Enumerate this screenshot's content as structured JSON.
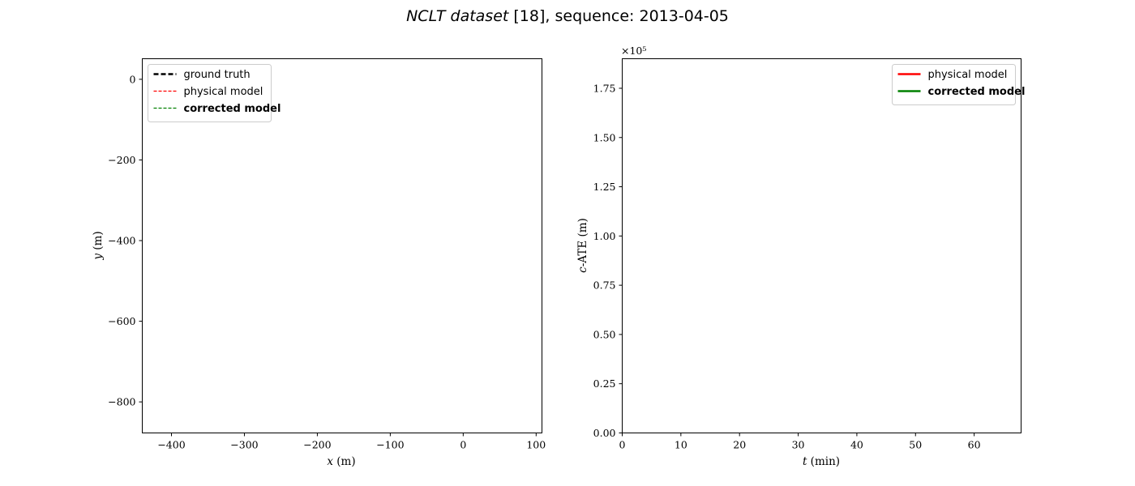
{
  "figure": {
    "title_italic": "NCLT dataset",
    "title_rest": " [18], sequence: 2013-04-05"
  },
  "chart_data": [
    {
      "type": "line",
      "panel": "trajectory",
      "xlabel_var": "x",
      "xlabel_unit": " (m)",
      "ylabel_var": "y",
      "ylabel_unit": " (m)",
      "xlim": [
        -440,
        108
      ],
      "ylim": [
        -877,
        51
      ],
      "xticks": [
        -400,
        -300,
        -200,
        -100,
        0,
        100
      ],
      "xtick_labels": [
        "−400",
        "−300",
        "−200",
        "−100",
        "0",
        "100"
      ],
      "yticks": [
        0,
        -200,
        -400,
        -600,
        -800
      ],
      "ytick_labels": [
        "0",
        "−200",
        "−400",
        "−600",
        "−800"
      ],
      "grid": false,
      "legend_position": "upper-left",
      "series": [
        {
          "name": "ground truth",
          "color": "#000000",
          "style": "dashed-thick",
          "bold": false,
          "x": [],
          "y": []
        },
        {
          "name": "physical model",
          "color": "#ff0000",
          "style": "dashed",
          "bold": false,
          "x": [],
          "y": []
        },
        {
          "name": "corrected model",
          "color": "#008000",
          "style": "dashed",
          "bold": true,
          "x": [],
          "y": []
        }
      ]
    },
    {
      "type": "line",
      "panel": "error",
      "xlabel_var": "t",
      "xlabel_unit": " (min)",
      "ylabel_var": "c",
      "ylabel_unit": "-ATE (m)",
      "xlim": [
        0,
        68
      ],
      "ylim": [
        0,
        190000
      ],
      "offset_text": "×10⁵",
      "xticks": [
        0,
        10,
        20,
        30,
        40,
        50,
        60
      ],
      "xtick_labels": [
        "0",
        "10",
        "20",
        "30",
        "40",
        "50",
        "60"
      ],
      "yticks": [
        0,
        25000,
        50000,
        75000,
        100000,
        125000,
        150000,
        175000
      ],
      "ytick_labels": [
        "0.00",
        "0.25",
        "0.50",
        "0.75",
        "1.00",
        "1.25",
        "1.50",
        "1.75"
      ],
      "grid": false,
      "legend_position": "upper-right",
      "series": [
        {
          "name": "physical model",
          "color": "#ff0000",
          "style": "solid",
          "bold": false,
          "x": [],
          "y": []
        },
        {
          "name": "corrected model",
          "color": "#008000",
          "style": "solid",
          "bold": true,
          "x": [],
          "y": []
        }
      ]
    }
  ]
}
